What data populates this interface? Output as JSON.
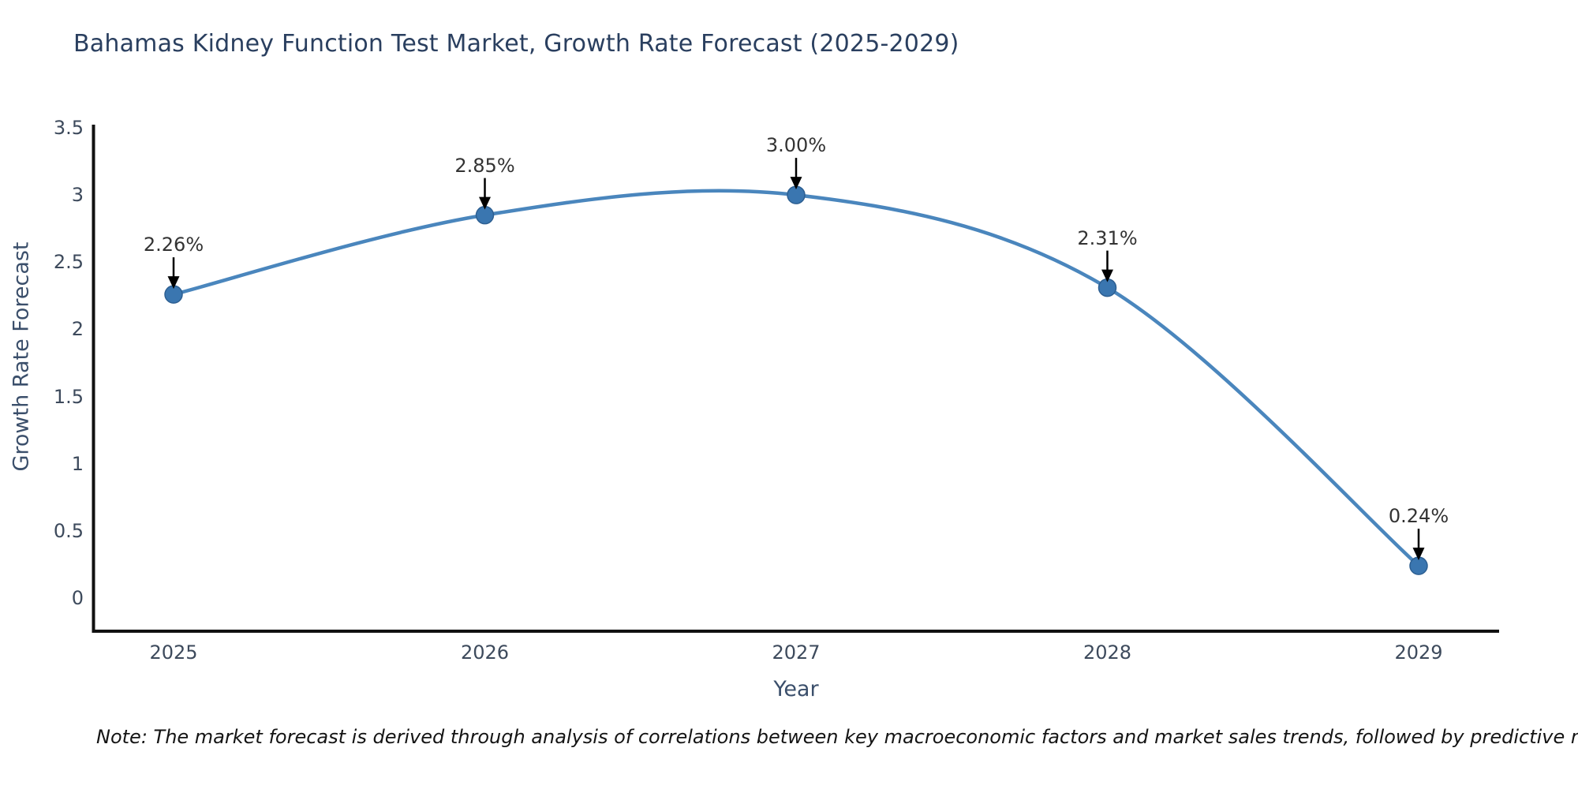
{
  "chart_data": {
    "type": "line",
    "title": "Bahamas Kidney Function Test Market, Growth Rate Forecast (2025-2029)",
    "xlabel": "Year",
    "ylabel": "Growth Rate Forecast",
    "categories": [
      "2025",
      "2026",
      "2027",
      "2028",
      "2029"
    ],
    "values": [
      2.26,
      2.85,
      3.0,
      2.31,
      0.24
    ],
    "point_labels": [
      "2.26%",
      "2.85%",
      "3.00%",
      "2.31%",
      "0.24%"
    ],
    "ytick_values": [
      3.5,
      3,
      2.5,
      2,
      1.5,
      1,
      0.5,
      0
    ],
    "ytick_labels": [
      "3.5",
      "3",
      "2.5",
      "2",
      "1.5",
      "1",
      "0.5",
      "0"
    ],
    "ylim": [
      -0.25,
      3.5
    ],
    "grid": false,
    "legend_position": "none",
    "line_color": "#4a86bd",
    "marker_color": "#3a76b0",
    "marker_edge_color": "#2d5f92",
    "axis_color": "#111111",
    "arrow_color": "#000000",
    "title_color": "#2a3f5f",
    "axis_label_color": "#3b4f6b",
    "tick_color": "#3d4a5c",
    "annotation_color": "#333333",
    "note": "Note: The market forecast is derived through analysis of correlations between key macroeconomic factors and market sales trends, followed by predictive modeling to project future sales",
    "note_color": "#141414",
    "background": "#ffffff"
  }
}
